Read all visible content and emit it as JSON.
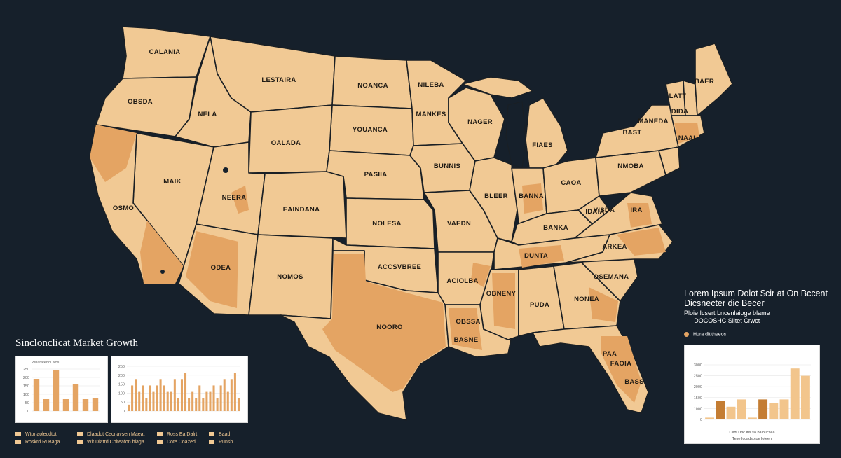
{
  "states": [
    {
      "name": "washington",
      "label": "CALANIA",
      "hot": false
    },
    {
      "name": "oregon",
      "label": "OBSDA",
      "hot": false
    },
    {
      "name": "idaho",
      "label": "NELA",
      "hot": false
    },
    {
      "name": "montana",
      "label": "LESTAIRA",
      "hot": false
    },
    {
      "name": "north-dakota",
      "label": "NOANCA",
      "hot": false
    },
    {
      "name": "south-dakota",
      "label": "YOUANCA",
      "hot": false
    },
    {
      "name": "wyoming",
      "label": "OALADA",
      "hot": false
    },
    {
      "name": "nevada",
      "label": "MAIK",
      "hot": false
    },
    {
      "name": "california",
      "label": "OSMO",
      "hot": false
    },
    {
      "name": "utah",
      "label": "NEERA",
      "hot": false
    },
    {
      "name": "colorado",
      "label": "EAINDANA",
      "hot": false
    },
    {
      "name": "arizona",
      "label": "ODEA",
      "hot": true
    },
    {
      "name": "new-mexico",
      "label": "NOMOS",
      "hot": false
    },
    {
      "name": "nebraska",
      "label": "PASIIA",
      "hot": false
    },
    {
      "name": "kansas",
      "label": "NOLESA",
      "hot": false
    },
    {
      "name": "oklahoma",
      "label": "ACCSVBREE",
      "hot": false
    },
    {
      "name": "texas",
      "label": "NOORO",
      "hot": true
    },
    {
      "name": "minnesota",
      "label": "NILEBA",
      "hot": false
    },
    {
      "name": "iowa",
      "label": "BUNNIS",
      "hot": false
    },
    {
      "name": "missouri",
      "label": "VAEDN",
      "hot": false
    },
    {
      "name": "arkansas",
      "label": "ACIOLBA",
      "hot": false
    },
    {
      "name": "louisiana",
      "label": "OBSSA",
      "hot": true
    },
    {
      "name": "wisconsin",
      "label": "MANKES",
      "hot": false
    },
    {
      "name": "illinois",
      "label": "BLEER",
      "hot": false
    },
    {
      "name": "michigan",
      "label": "NAGER",
      "hot": false
    },
    {
      "name": "lower-michigan",
      "label": "FIAES",
      "hot": false
    },
    {
      "name": "indiana",
      "label": "BANNA",
      "hot": false
    },
    {
      "name": "ohio",
      "label": "CAOA",
      "hot": false
    },
    {
      "name": "kentucky",
      "label": "BANKA",
      "hot": false
    },
    {
      "name": "tennessee",
      "label": "DUNTA",
      "hot": true
    },
    {
      "name": "mississippi",
      "label": "OBNENY",
      "hot": false
    },
    {
      "name": "alabama",
      "label": "PUDA",
      "hot": false
    },
    {
      "name": "georgia",
      "label": "NONEA",
      "hot": false
    },
    {
      "name": "florida",
      "label": "FAOIA",
      "hot": true
    },
    {
      "name": "south-carolina",
      "label": "OSEMANA",
      "hot": false
    },
    {
      "name": "north-carolina",
      "label": "ARKEA",
      "hot": true
    },
    {
      "name": "virginia",
      "label": "IRA",
      "hot": false
    },
    {
      "name": "west-virginia",
      "label": "IDAIA",
      "hot": false
    },
    {
      "name": "pennsylvania",
      "label": "NMOBA",
      "hot": false
    },
    {
      "name": "new-york",
      "label": "MANEDA",
      "hot": false
    },
    {
      "name": "maine",
      "label": "BAER",
      "hot": false
    },
    {
      "name": "vermont",
      "label": "LATT",
      "hot": false
    },
    {
      "name": "new-hampshire",
      "label": "DIDA",
      "hot": false
    },
    {
      "name": "connecticut",
      "label": "BAST",
      "hot": false
    },
    {
      "name": "massachusetts",
      "label": "NAAI",
      "hot": true
    },
    {
      "name": "georgia-coast",
      "label": "VISDA",
      "hot": false
    },
    {
      "name": "gulf",
      "label": "BASNE",
      "hot": false
    },
    {
      "name": "southflorida",
      "label": "BASS",
      "hot": false
    },
    {
      "name": "florida-mid",
      "label": "PAA",
      "hot": false
    }
  ],
  "left_panel": {
    "title": "Sinclonclicat Market Growth",
    "chart_a": {
      "header": "Wharatedol Nos",
      "ticks": [
        "250",
        "200",
        "150",
        "100",
        "50",
        "0"
      ],
      "values": [
        4.6,
        1.7,
        5.8,
        1.7,
        3.9,
        1.7,
        1.8
      ]
    },
    "chart_b": {
      "ticks": [
        "250",
        "200",
        "150",
        "100",
        "50",
        "0"
      ],
      "values": [
        1,
        4,
        5,
        3,
        4,
        2,
        4,
        3,
        4,
        5,
        4,
        3,
        3,
        5,
        2,
        5,
        6,
        2,
        3,
        2,
        4,
        2,
        3,
        3,
        4,
        2,
        4,
        5,
        3,
        5,
        6,
        2
      ]
    },
    "legend": [
      {
        "label": "Wtonaolecdtot",
        "color": "#f1c994"
      },
      {
        "label": "Roskrd RI Baga",
        "color": "#e4a463"
      },
      {
        "label": "Dlaadot Cecnavsen Maeat",
        "color": "#f1c994"
      },
      {
        "label": "Wit Dlatrd Colteafon biaga",
        "color": "#f1c994"
      },
      {
        "label": "Ross Ea Dalrt",
        "color": "#f1c994"
      },
      {
        "label": "Dote Coazed",
        "color": "#f1c994"
      },
      {
        "label": "Baad",
        "color": "#f1c994"
      },
      {
        "label": "Runsh",
        "color": "#f1c994"
      }
    ]
  },
  "right_panel": {
    "title_line1": "Lorem Ipsum Dolot $cir at On Bccent",
    "title_line2": "Dicsnecter dic Becer",
    "sub_line1": "Ploie Icsert Lncenlaioge blame",
    "sub_line2": "DOCOSHC Slitet Crwct",
    "legend_label": "Hura dititheeos",
    "chart": {
      "ticks": [
        "3000",
        "2500",
        "2000",
        "1500",
        "1000",
        "0"
      ],
      "values": [
        0.1,
        1.0,
        0.7,
        1.1,
        0.1,
        1.1,
        0.9,
        1.1,
        2.8,
        2.4
      ],
      "caption1": "Cedi Dnc Itis sa balo Icsea",
      "caption2": "Tese Iccadsotoe loteen"
    }
  },
  "colors": {
    "background": "#16202b",
    "land": "#f1c994",
    "hot": "#e4a463",
    "border": "#1a1f24",
    "bar_light": "#f2c58c",
    "bar_dark": "#c47d33"
  }
}
